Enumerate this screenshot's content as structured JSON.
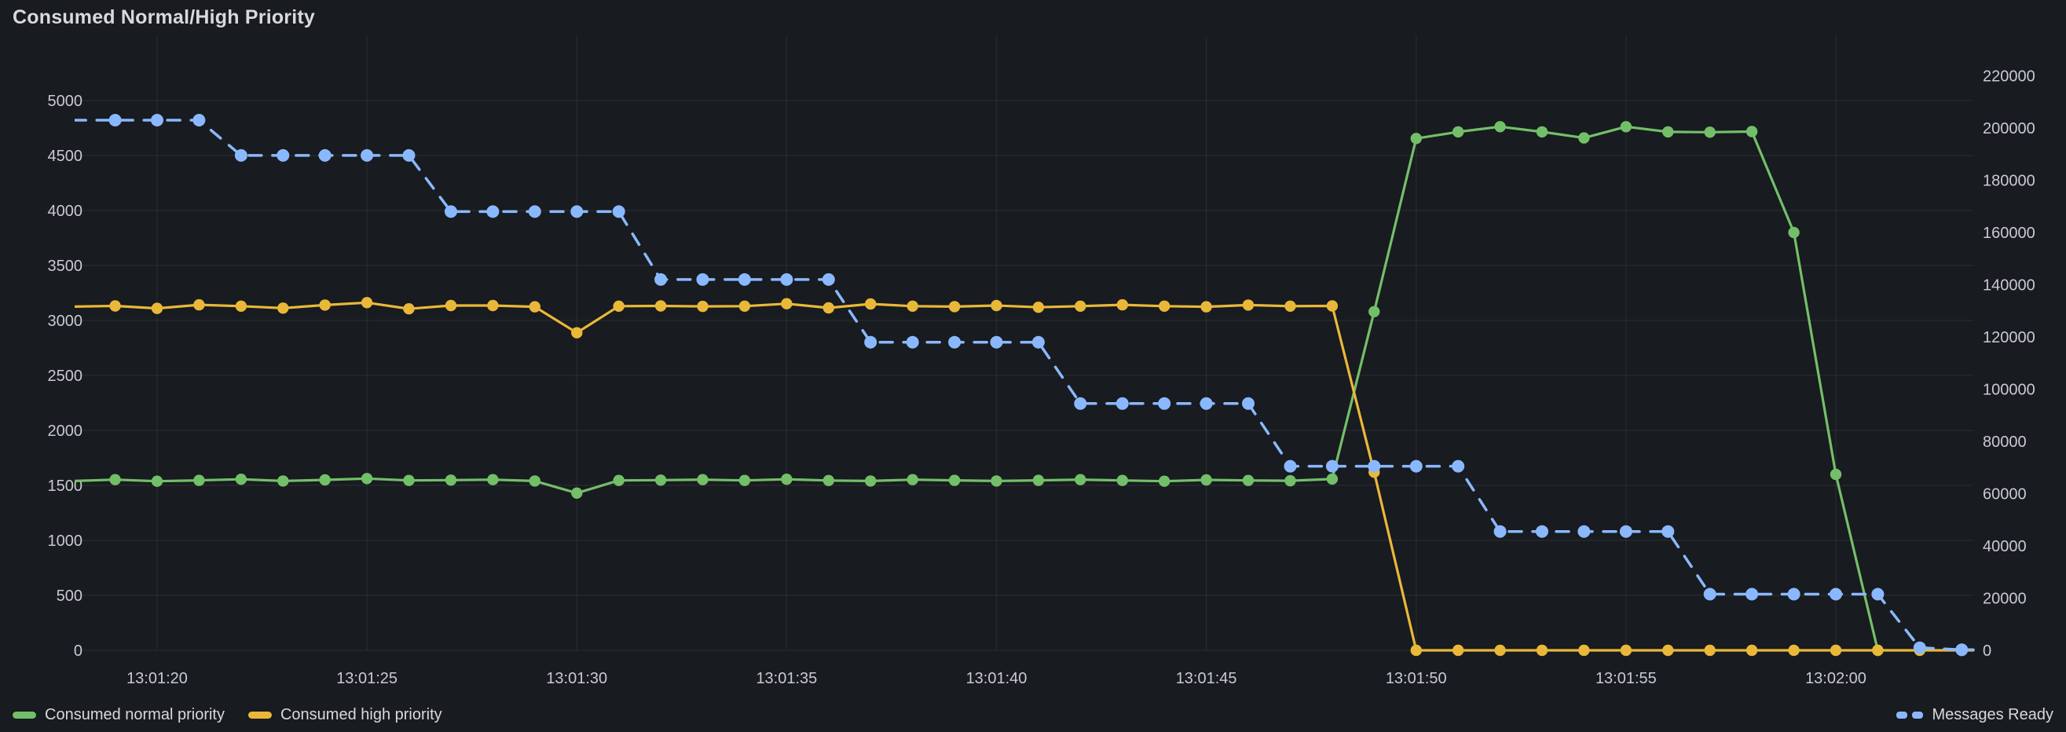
{
  "panel": {
    "title": "Consumed Normal/High Priority",
    "colors": {
      "background": "#181b1f",
      "grid": "rgba(204,204,220,0.07)",
      "tick_label": "#c9cad3",
      "title_text": "#d8d9da",
      "green": "#73bf69",
      "yellow": "#eab839",
      "blue": "#8ab8ff"
    }
  },
  "chart_data": {
    "type": "line",
    "title": "Consumed Normal/High Priority",
    "grid": true,
    "legend_position": "bottom",
    "x_axis": {
      "kind": "time",
      "range_seconds": [
        78,
        123.3
      ],
      "ticks": [
        {
          "label": "13:01:20",
          "t": 80
        },
        {
          "label": "13:01:25",
          "t": 85
        },
        {
          "label": "13:01:30",
          "t": 90
        },
        {
          "label": "13:01:35",
          "t": 95
        },
        {
          "label": "13:01:40",
          "t": 100
        },
        {
          "label": "13:01:45",
          "t": 105
        },
        {
          "label": "13:01:50",
          "t": 110
        },
        {
          "label": "13:01:55",
          "t": 115
        },
        {
          "label": "13:02:00",
          "t": 120
        }
      ]
    },
    "y_left": {
      "min": 0,
      "max": 5000,
      "step": 500,
      "tick_labels": [
        "0",
        "500",
        "1000",
        "1500",
        "2000",
        "2500",
        "3000",
        "3500",
        "4000",
        "4500",
        "5000"
      ]
    },
    "y_right": {
      "min": 0,
      "max": 220000,
      "step": 20000,
      "tick_labels": [
        "0",
        "20000",
        "40000",
        "60000",
        "80000",
        "100000",
        "120000",
        "140000",
        "160000",
        "180000",
        "200000",
        "220000"
      ]
    },
    "series": [
      {
        "name": "Consumed normal priority",
        "axis": "left",
        "style": "solid",
        "color": "#73bf69",
        "extend_to_right_edge": false,
        "points": [
          [
            78,
            1540
          ],
          [
            79,
            1552
          ],
          [
            80,
            1538
          ],
          [
            81,
            1546
          ],
          [
            82,
            1556
          ],
          [
            83,
            1540
          ],
          [
            84,
            1550
          ],
          [
            85,
            1562
          ],
          [
            86,
            1545
          ],
          [
            87,
            1548
          ],
          [
            88,
            1552
          ],
          [
            89,
            1540
          ],
          [
            90,
            1430
          ],
          [
            91,
            1545
          ],
          [
            92,
            1548
          ],
          [
            93,
            1552
          ],
          [
            94,
            1545
          ],
          [
            95,
            1556
          ],
          [
            96,
            1544
          ],
          [
            97,
            1540
          ],
          [
            98,
            1552
          ],
          [
            99,
            1546
          ],
          [
            100,
            1540
          ],
          [
            101,
            1546
          ],
          [
            102,
            1552
          ],
          [
            103,
            1545
          ],
          [
            104,
            1538
          ],
          [
            105,
            1550
          ],
          [
            106,
            1545
          ],
          [
            107,
            1542
          ],
          [
            108,
            1558
          ],
          [
            109,
            3080
          ],
          [
            110,
            4655
          ],
          [
            111,
            4715
          ],
          [
            112,
            4762
          ],
          [
            113,
            4715
          ],
          [
            114,
            4660
          ],
          [
            115,
            4762
          ],
          [
            116,
            4715
          ],
          [
            117,
            4712
          ],
          [
            118,
            4718
          ],
          [
            119,
            3800
          ],
          [
            120,
            1600
          ],
          [
            121,
            0
          ]
        ]
      },
      {
        "name": "Consumed high priority",
        "axis": "left",
        "style": "solid",
        "color": "#eab839",
        "extend_to_right_edge": true,
        "points": [
          [
            78,
            3126
          ],
          [
            79,
            3132
          ],
          [
            80,
            3110
          ],
          [
            81,
            3142
          ],
          [
            82,
            3130
          ],
          [
            83,
            3112
          ],
          [
            84,
            3140
          ],
          [
            85,
            3162
          ],
          [
            86,
            3106
          ],
          [
            87,
            3136
          ],
          [
            88,
            3136
          ],
          [
            89,
            3124
          ],
          [
            90,
            2888
          ],
          [
            91,
            3130
          ],
          [
            92,
            3132
          ],
          [
            93,
            3128
          ],
          [
            94,
            3130
          ],
          [
            95,
            3152
          ],
          [
            96,
            3114
          ],
          [
            97,
            3150
          ],
          [
            98,
            3130
          ],
          [
            99,
            3126
          ],
          [
            100,
            3136
          ],
          [
            101,
            3120
          ],
          [
            102,
            3130
          ],
          [
            103,
            3142
          ],
          [
            104,
            3130
          ],
          [
            105,
            3124
          ],
          [
            106,
            3140
          ],
          [
            107,
            3130
          ],
          [
            108,
            3132
          ],
          [
            109,
            1620
          ],
          [
            110,
            0
          ],
          [
            111,
            0
          ],
          [
            112,
            0
          ],
          [
            113,
            0
          ],
          [
            114,
            0
          ],
          [
            115,
            0
          ],
          [
            116,
            0
          ],
          [
            117,
            0
          ],
          [
            118,
            0
          ],
          [
            119,
            0
          ],
          [
            120,
            0
          ],
          [
            121,
            0
          ],
          [
            122,
            0
          ],
          [
            123,
            0
          ]
        ]
      },
      {
        "name": "Messages Ready",
        "axis": "right",
        "style": "dashed",
        "color": "#8ab8ff",
        "extend_to_right_edge": true,
        "points": [
          [
            78,
            203000
          ],
          [
            79,
            203000
          ],
          [
            80,
            203000
          ],
          [
            81,
            203000
          ],
          [
            82,
            189500
          ],
          [
            83,
            189500
          ],
          [
            84,
            189500
          ],
          [
            85,
            189500
          ],
          [
            86,
            189500
          ],
          [
            87,
            168000
          ],
          [
            88,
            168000
          ],
          [
            89,
            168000
          ],
          [
            90,
            168000
          ],
          [
            91,
            168000
          ],
          [
            92,
            142000
          ],
          [
            93,
            142000
          ],
          [
            94,
            142000
          ],
          [
            95,
            142000
          ],
          [
            96,
            142000
          ],
          [
            97,
            118000
          ],
          [
            98,
            118000
          ],
          [
            99,
            118000
          ],
          [
            100,
            118000
          ],
          [
            101,
            118000
          ],
          [
            102,
            94500
          ],
          [
            103,
            94500
          ],
          [
            104,
            94500
          ],
          [
            105,
            94500
          ],
          [
            106,
            94500
          ],
          [
            107,
            70500
          ],
          [
            108,
            70500
          ],
          [
            109,
            70500
          ],
          [
            110,
            70500
          ],
          [
            111,
            70500
          ],
          [
            112,
            45500
          ],
          [
            113,
            45500
          ],
          [
            114,
            45500
          ],
          [
            115,
            45500
          ],
          [
            116,
            45500
          ],
          [
            117,
            21500
          ],
          [
            118,
            21500
          ],
          [
            119,
            21500
          ],
          [
            120,
            21500
          ],
          [
            121,
            21500
          ],
          [
            122,
            1000
          ],
          [
            123,
            200
          ]
        ]
      }
    ],
    "legend": {
      "left_items": [
        0,
        1
      ],
      "right_items": [
        2
      ]
    }
  }
}
